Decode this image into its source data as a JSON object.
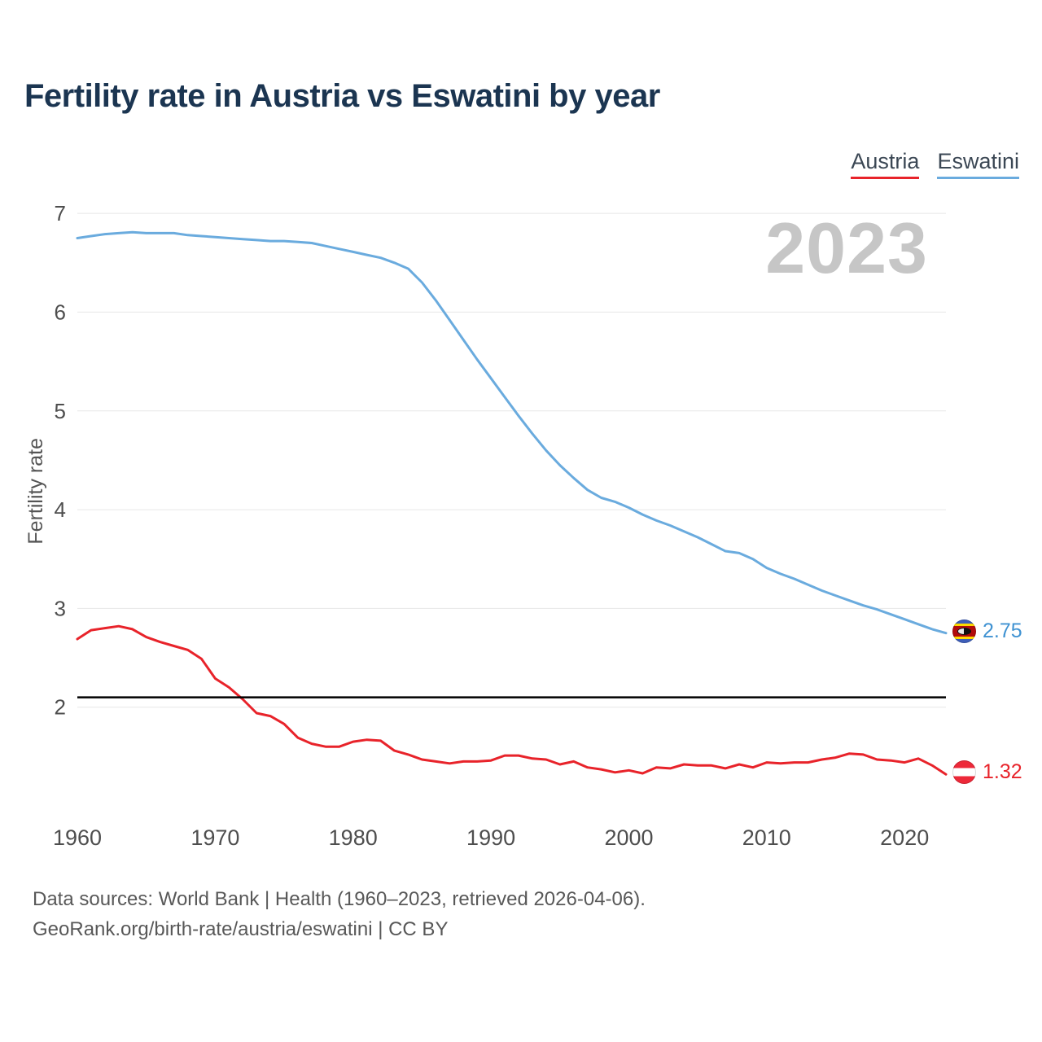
{
  "page": {
    "title": "Fertility rate in Austria vs Eswatini by year",
    "watermark": "2023",
    "footer_line1": "Data sources: World Bank | Health (1960–2023, retrieved 2026-04-06).",
    "footer_line2": "GeoRank.org/birth-rate/austria/eswatini | CC BY"
  },
  "legend": [
    {
      "label": "Austria",
      "color": "#e8232a"
    },
    {
      "label": "Eswatini",
      "color": "#6aabde"
    }
  ],
  "chart_data": {
    "type": "line",
    "title": "Fertility rate in Austria vs Eswatini by year",
    "xlabel": "",
    "ylabel": "Fertility rate",
    "x_start": 1960,
    "x_end": 2023,
    "ylim": [
      1.0,
      7.1
    ],
    "y_ticks": [
      2,
      3,
      4,
      5,
      6,
      7
    ],
    "x_ticks": [
      1960,
      1970,
      1980,
      1990,
      2000,
      2010,
      2020
    ],
    "grid": "horizontal",
    "legend_position": "top-right",
    "replacement_line": {
      "value": 2.1,
      "color": "#000000"
    },
    "series": [
      {
        "name": "Austria",
        "color": "#e8232a",
        "end_label": "1.32",
        "values": [
          2.69,
          2.78,
          2.8,
          2.82,
          2.79,
          2.71,
          2.66,
          2.62,
          2.58,
          2.49,
          2.29,
          2.2,
          2.08,
          1.94,
          1.91,
          1.83,
          1.69,
          1.63,
          1.6,
          1.6,
          1.65,
          1.67,
          1.66,
          1.56,
          1.52,
          1.47,
          1.45,
          1.43,
          1.45,
          1.45,
          1.46,
          1.51,
          1.51,
          1.48,
          1.47,
          1.42,
          1.45,
          1.39,
          1.37,
          1.34,
          1.36,
          1.33,
          1.39,
          1.38,
          1.42,
          1.41,
          1.41,
          1.38,
          1.42,
          1.39,
          1.44,
          1.43,
          1.44,
          1.44,
          1.47,
          1.49,
          1.53,
          1.52,
          1.47,
          1.46,
          1.44,
          1.48,
          1.41,
          1.32
        ]
      },
      {
        "name": "Eswatini",
        "color": "#6aabde",
        "end_label": "2.75",
        "values": [
          6.75,
          6.77,
          6.79,
          6.8,
          6.81,
          6.8,
          6.8,
          6.8,
          6.78,
          6.77,
          6.76,
          6.75,
          6.74,
          6.73,
          6.72,
          6.72,
          6.71,
          6.7,
          6.67,
          6.64,
          6.61,
          6.58,
          6.55,
          6.5,
          6.44,
          6.3,
          6.12,
          5.92,
          5.72,
          5.52,
          5.33,
          5.14,
          4.95,
          4.77,
          4.6,
          4.45,
          4.32,
          4.2,
          4.12,
          4.08,
          4.02,
          3.95,
          3.89,
          3.84,
          3.78,
          3.72,
          3.65,
          3.58,
          3.56,
          3.5,
          3.41,
          3.35,
          3.3,
          3.24,
          3.18,
          3.13,
          3.08,
          3.03,
          2.99,
          2.94,
          2.89,
          2.84,
          2.79,
          2.75
        ]
      }
    ]
  }
}
